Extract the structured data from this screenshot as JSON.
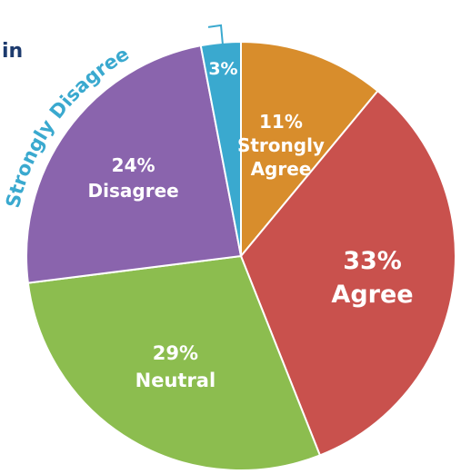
{
  "chart_data": {
    "type": "pie",
    "slices": [
      {
        "label_lines": [
          "11%",
          "Strongly",
          "Agree"
        ],
        "category": "Strongly Agree",
        "value": 11,
        "color": "#d88d2c"
      },
      {
        "label_lines": [
          "33%",
          "Agree"
        ],
        "category": "Agree",
        "value": 33,
        "color": "#c9514d"
      },
      {
        "label_lines": [
          "29%",
          "Neutral"
        ],
        "category": "Neutral",
        "value": 29,
        "color": "#8cbd4f"
      },
      {
        "label_lines": [
          "24%",
          "Disagree"
        ],
        "category": "Disagree",
        "value": 24,
        "color": "#8a64ad"
      },
      {
        "label_lines": [
          "3%"
        ],
        "category": "Strongly Disagree",
        "value": 3,
        "color": "#3aa9cf"
      }
    ],
    "callout": {
      "text": "Strongly Disagree",
      "color": "#3aa9cf"
    },
    "start": "12 o'clock",
    "direction": "clockwise",
    "legend": "none"
  },
  "fragment_text": "in"
}
